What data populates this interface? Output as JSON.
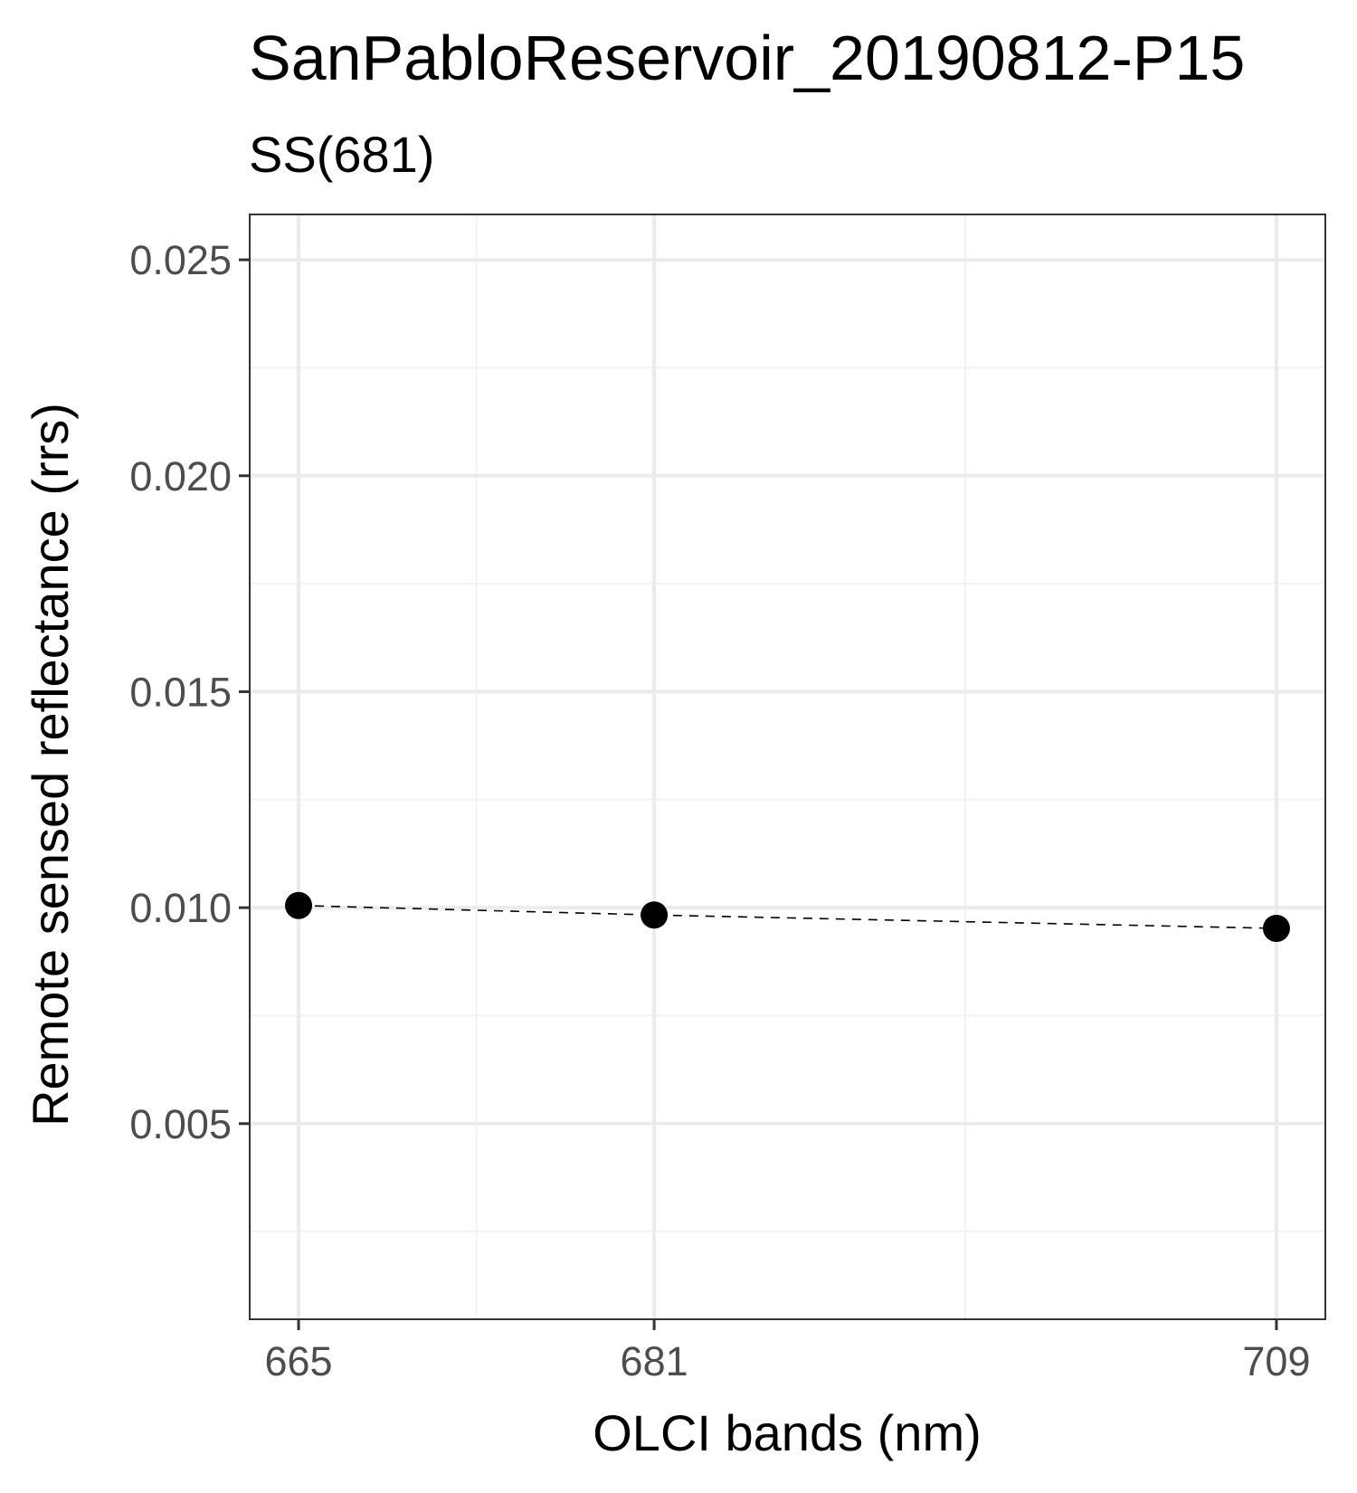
{
  "chart_data": {
    "type": "line",
    "title": "SanPabloReservoir_20190812-P15",
    "subtitle": "SS(681)",
    "xlabel": "OLCI bands (nm)",
    "ylabel": "Remote sensed reflectance (rrs)",
    "x": [
      665,
      681,
      709
    ],
    "x_ticks": [
      "665",
      "681",
      "709"
    ],
    "xlim": [
      662.8,
      711.2
    ],
    "y_ticks": [
      "0.005",
      "0.010",
      "0.015",
      "0.020",
      "0.025"
    ],
    "y_tick_values": [
      0.005,
      0.01,
      0.015,
      0.02,
      0.025
    ],
    "ylim": [
      0.00047,
      0.02605
    ],
    "grid": true,
    "series": [
      {
        "values": [
          0.01005,
          0.00983,
          0.00952
        ],
        "line_style": "dashed",
        "marker": "circle",
        "color": "#000000"
      }
    ],
    "colors": {
      "grid_major": "#ebebeb",
      "grid_minor": "#f2f2f2",
      "panel_border": "#333333",
      "tick_label": "#4d4d4d"
    }
  }
}
